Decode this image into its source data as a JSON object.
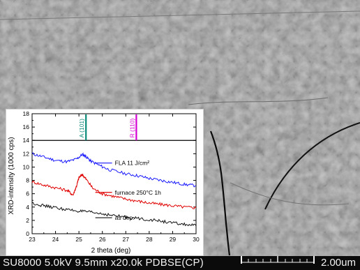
{
  "sem": {
    "status_left": "SU8000 5.0kV 9.5mm x20.0k PDBSE(CP)",
    "scale_label": "2.00um",
    "background_color": "#8c8c8c"
  },
  "chart_data": {
    "type": "line",
    "xlabel": "2 theta (deg)",
    "ylabel": "XRD-intensity (1000 cps)",
    "xlim": [
      23,
      30
    ],
    "ylim": [
      0,
      18
    ],
    "x_ticks": [
      "23",
      "24",
      "25",
      "26",
      "27",
      "28",
      "29",
      "30"
    ],
    "y_ticks": [
      "0",
      "2",
      "4",
      "6",
      "8",
      "10",
      "12",
      "14",
      "16",
      "18"
    ],
    "break_line_y": 14,
    "reference_lines": [
      {
        "label": "A (101)",
        "x": 25.3,
        "color": "#0a8a78"
      },
      {
        "label": "R (110)",
        "x": 27.45,
        "color": "#d400d4"
      }
    ],
    "series": [
      {
        "name": "FLA 11 J/cm²",
        "color": "#1a1aff",
        "x": [
          23.0,
          23.5,
          24.0,
          24.5,
          24.9,
          25.15,
          25.3,
          25.5,
          25.9,
          26.3,
          27.0,
          27.5,
          28.0,
          28.5,
          29.0,
          29.5,
          30.0
        ],
        "values": [
          12.0,
          11.5,
          11.0,
          10.8,
          11.2,
          11.9,
          11.6,
          10.9,
          10.2,
          9.6,
          9.0,
          8.7,
          8.3,
          8.0,
          7.7,
          7.4,
          7.2
        ]
      },
      {
        "name": "furnace 250°C 1h",
        "color": "#e00000",
        "x": [
          23.0,
          23.5,
          24.0,
          24.5,
          24.75,
          24.9,
          25.0,
          25.15,
          25.3,
          25.6,
          26.0,
          26.5,
          27.0,
          27.5,
          28.0,
          28.5,
          29.0,
          29.5,
          30.0
        ],
        "values": [
          7.8,
          7.3,
          6.9,
          6.5,
          5.8,
          7.2,
          8.4,
          8.9,
          8.2,
          6.8,
          6.0,
          5.6,
          5.2,
          4.9,
          4.6,
          4.4,
          4.2,
          4.0,
          3.9
        ]
      },
      {
        "name": "as dep.",
        "color": "#111111",
        "x": [
          23.0,
          23.5,
          24.0,
          24.5,
          25.0,
          25.5,
          26.0,
          26.5,
          27.0,
          27.5,
          28.0,
          28.5,
          29.0,
          29.5,
          30.0
        ],
        "values": [
          4.6,
          4.2,
          3.9,
          3.6,
          3.4,
          3.2,
          3.0,
          2.7,
          2.5,
          2.3,
          2.1,
          1.9,
          1.6,
          1.4,
          1.2
        ]
      }
    ]
  }
}
